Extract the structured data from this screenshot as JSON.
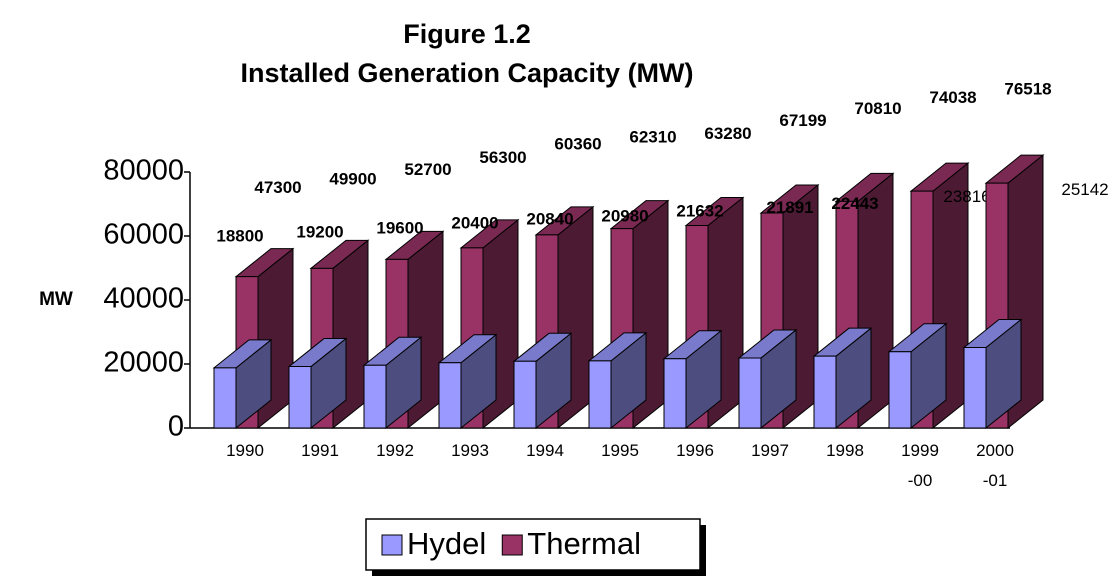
{
  "chart_data": {
    "type": "bar3d",
    "title": "Figure 1.2",
    "subtitle": "Installed Generation Capacity (MW)",
    "y_label": "MW",
    "categories": [
      "1990",
      "1991",
      "1992",
      "1993",
      "1994",
      "1995",
      "1996",
      "1997",
      "1998",
      "1999-00",
      "2000-01"
    ],
    "series": [
      {
        "name": "Hydel",
        "color": "#9999ff",
        "values": [
          18800,
          19200,
          19600,
          20400,
          20840,
          20980,
          21632,
          21891,
          22443,
          23816,
          25142
        ]
      },
      {
        "name": "Thermal",
        "color": "#993366",
        "values": [
          47300,
          49900,
          52700,
          56300,
          60360,
          62310,
          63280,
          67199,
          70810,
          74038,
          76518
        ]
      }
    ],
    "ylim": [
      0,
      80000
    ],
    "yticks": [
      0,
      20000,
      40000,
      60000,
      80000
    ],
    "legend": "bottom"
  }
}
